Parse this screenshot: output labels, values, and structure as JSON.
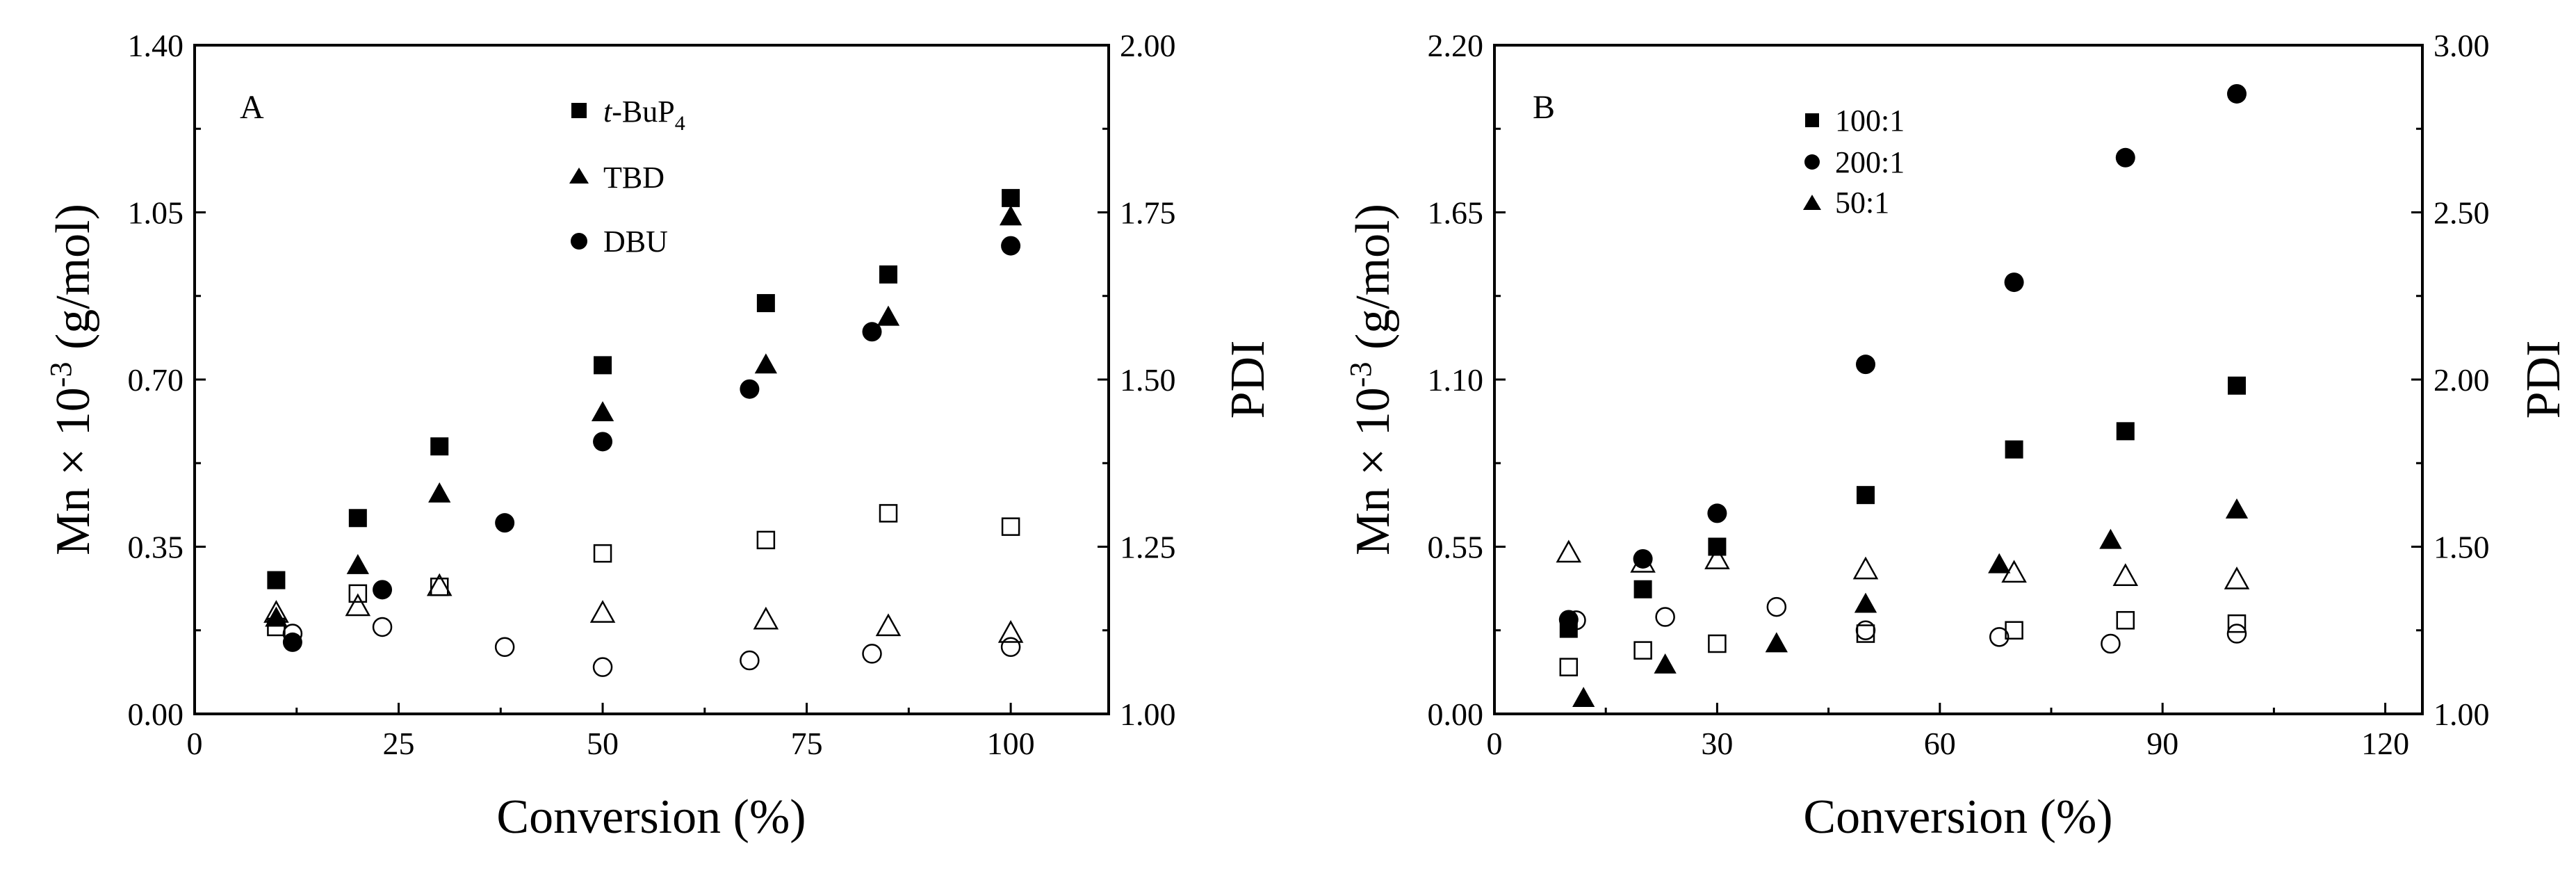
{
  "chart_data": [
    {
      "type": "scatter",
      "panel_label": "A",
      "xlabel": "Conversion (%)",
      "ylabel_left": "Mn × 10⁻³ (g/mol)",
      "ylabel_right": "PDI",
      "xlim": [
        0,
        112
      ],
      "ylim_left": [
        0,
        1.4
      ],
      "ylim_right": [
        1.0,
        2.0
      ],
      "xticks": [
        0,
        25,
        50,
        75,
        100
      ],
      "yticks_left": [
        "0.00",
        "0.35",
        "0.70",
        "1.05",
        "1.40"
      ],
      "yticks_right": [
        "1.00",
        "1.25",
        "1.50",
        "1.75",
        "2.00"
      ],
      "legend": [
        "t-BuP4",
        "TBD",
        "DBU"
      ],
      "legend_position": "top-center",
      "series": [
        {
          "name": "t-BuP4",
          "marker": "square",
          "fill": "filled",
          "axis": "left",
          "x": [
            10,
            20,
            30,
            50,
            70,
            85,
            100
          ],
          "y": [
            0.28,
            0.41,
            0.56,
            0.73,
            0.86,
            0.92,
            1.08
          ]
        },
        {
          "name": "TBD",
          "marker": "triangle",
          "fill": "filled",
          "axis": "left",
          "x": [
            10,
            20,
            30,
            50,
            70,
            85,
            100
          ],
          "y": [
            0.2,
            0.31,
            0.46,
            0.63,
            0.73,
            0.83,
            1.04
          ]
        },
        {
          "name": "DBU",
          "marker": "circle",
          "fill": "filled",
          "axis": "left",
          "x": [
            12,
            23,
            38,
            50,
            68,
            83,
            100
          ],
          "y": [
            0.15,
            0.26,
            0.4,
            0.57,
            0.68,
            0.8,
            0.98
          ]
        },
        {
          "name": "t-BuP4 PDI",
          "marker": "square",
          "fill": "open",
          "axis": "right",
          "x": [
            10,
            20,
            30,
            50,
            70,
            85,
            100
          ],
          "y": [
            1.13,
            1.18,
            1.19,
            1.24,
            1.26,
            1.3,
            1.28
          ]
        },
        {
          "name": "TBD PDI",
          "marker": "triangle",
          "fill": "open",
          "axis": "right",
          "x": [
            10,
            20,
            30,
            50,
            70,
            85,
            100
          ],
          "y": [
            1.15,
            1.16,
            1.19,
            1.15,
            1.14,
            1.13,
            1.12
          ]
        },
        {
          "name": "DBU PDI",
          "marker": "circle",
          "fill": "open",
          "axis": "right",
          "x": [
            12,
            23,
            38,
            50,
            68,
            83,
            100
          ],
          "y": [
            1.12,
            1.13,
            1.1,
            1.07,
            1.08,
            1.09,
            1.1
          ]
        }
      ]
    },
    {
      "type": "scatter",
      "panel_label": "B",
      "xlabel": "Conversion (%)",
      "ylabel_left": "Mn × 10⁻³ (g/mol)",
      "ylabel_right": "PDI",
      "xlim": [
        0,
        125
      ],
      "ylim_left": [
        0,
        2.2
      ],
      "ylim_right": [
        1.0,
        3.0
      ],
      "xticks": [
        0,
        30,
        60,
        90,
        120
      ],
      "yticks_left": [
        "0.00",
        "0.55",
        "1.10",
        "1.65",
        "2.20"
      ],
      "yticks_right": [
        "1.00",
        "1.50",
        "2.00",
        "2.50",
        "3.00"
      ],
      "legend": [
        "100:1",
        "200:1",
        "50:1"
      ],
      "legend_position": "top-left",
      "series": [
        {
          "name": "100:1",
          "marker": "square",
          "fill": "filled",
          "axis": "left",
          "x": [
            10,
            20,
            30,
            50,
            70,
            85,
            100
          ],
          "y": [
            0.28,
            0.41,
            0.55,
            0.72,
            0.87,
            0.93,
            1.08
          ]
        },
        {
          "name": "200:1",
          "marker": "circle",
          "fill": "filled",
          "axis": "left",
          "x": [
            10,
            20,
            30,
            50,
            70,
            85,
            100
          ],
          "y": [
            0.31,
            0.51,
            0.66,
            1.15,
            1.42,
            1.83,
            2.04
          ]
        },
        {
          "name": "50:1",
          "marker": "triangle",
          "fill": "filled",
          "axis": "left",
          "x": [
            12,
            23,
            38,
            50,
            68,
            83,
            100
          ],
          "y": [
            0.05,
            0.16,
            0.23,
            0.36,
            0.49,
            0.57,
            0.67
          ]
        },
        {
          "name": "100:1 PDI",
          "marker": "square",
          "fill": "open",
          "axis": "right",
          "x": [
            10,
            20,
            30,
            50,
            70,
            85,
            100
          ],
          "y": [
            1.14,
            1.19,
            1.21,
            1.24,
            1.25,
            1.28,
            1.27
          ]
        },
        {
          "name": "200:1 PDI",
          "marker": "circle",
          "fill": "open",
          "axis": "right",
          "x": [
            11,
            23,
            38,
            50,
            68,
            83,
            100
          ],
          "y": [
            1.28,
            1.29,
            1.32,
            1.25,
            1.23,
            1.21,
            1.24
          ]
        },
        {
          "name": "50:1 PDI",
          "marker": "triangle",
          "fill": "open",
          "axis": "right",
          "x": [
            10,
            20,
            30,
            50,
            70,
            85,
            100
          ],
          "y": [
            1.48,
            1.45,
            1.46,
            1.43,
            1.42,
            1.41,
            1.4
          ]
        }
      ]
    }
  ]
}
